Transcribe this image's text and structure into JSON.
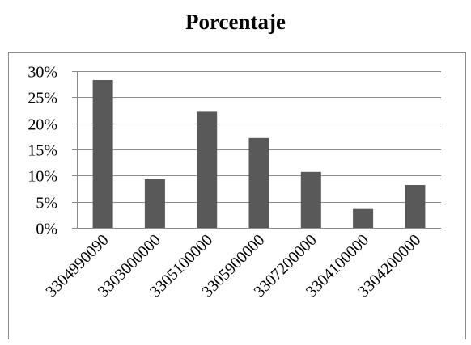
{
  "chart_data": {
    "type": "bar",
    "title": "Porcentaje",
    "xlabel": "",
    "ylabel": "",
    "categories": [
      "3304990090",
      "3303000000",
      "3305100000",
      "3305900000",
      "3307200000",
      "3304100000",
      "3304200000"
    ],
    "values": [
      0.283,
      0.093,
      0.222,
      0.172,
      0.107,
      0.036,
      0.082
    ],
    "ylim": [
      0,
      0.3
    ],
    "yticks": [
      0,
      0.05,
      0.1,
      0.15,
      0.2,
      0.25,
      0.3
    ],
    "ytick_labels": [
      "0%",
      "5%",
      "10%",
      "15%",
      "20%",
      "25%",
      "30%"
    ],
    "grid": true,
    "legend": "none",
    "colors": {
      "bar": "#595959",
      "grid": "#8c8c8c",
      "text": "#000000"
    }
  }
}
